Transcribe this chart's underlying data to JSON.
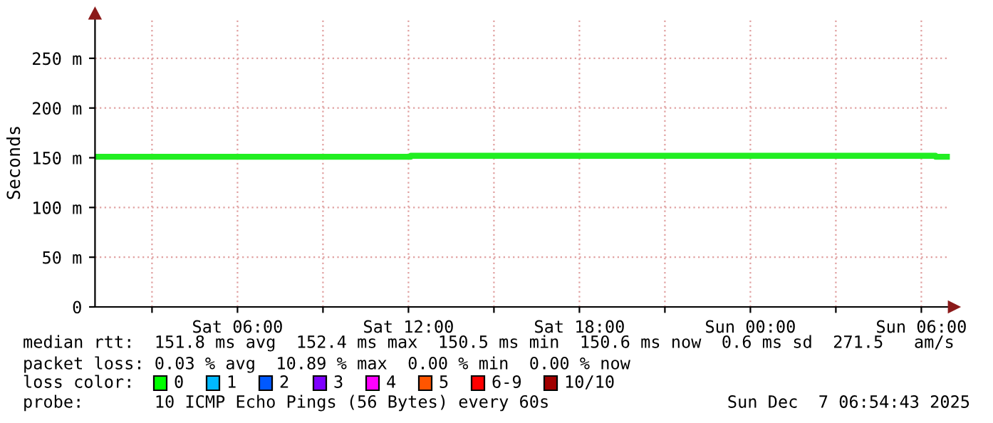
{
  "chart_data": {
    "type": "step",
    "ylabel": "Seconds",
    "x": [
      "2025-12-06T01:00",
      "2025-12-06T12:05",
      "2025-12-07T06:30",
      "2025-12-07T06:55"
    ],
    "series": [
      {
        "color": "#22ee22",
        "values": [
          151,
          152,
          151,
          151
        ]
      }
    ],
    "xlim": [
      "2025-12-06T01:00",
      "2025-12-07T07:00"
    ],
    "xticks": [
      {
        "value": "2025-12-06T03:00",
        "label": null
      },
      {
        "value": "2025-12-06T06:00",
        "label": "Sat 06:00"
      },
      {
        "value": "2025-12-06T09:00",
        "label": null
      },
      {
        "value": "2025-12-06T12:00",
        "label": "Sat 12:00"
      },
      {
        "value": "2025-12-06T15:00",
        "label": null
      },
      {
        "value": "2025-12-06T18:00",
        "label": "Sat 18:00"
      },
      {
        "value": "2025-12-06T21:00",
        "label": null
      },
      {
        "value": "2025-12-07T00:00",
        "label": "Sun 00:00"
      },
      {
        "value": "2025-12-07T03:00",
        "label": null
      },
      {
        "value": "2025-12-07T06:00",
        "label": "Sun 06:00"
      }
    ],
    "ylim": [
      0,
      290
    ],
    "yticks": [
      0,
      {
        "value": 50,
        "label": "50 m"
      },
      {
        "value": 100,
        "label": "100 m"
      },
      {
        "value": 150,
        "label": "150 m"
      },
      {
        "value": 200,
        "label": "200 m"
      },
      {
        "value": 250,
        "label": "250 m"
      }
    ],
    "grid": true,
    "annotations": [
      "median rtt:  151.8 ms avg  152.4 ms max  150.5 ms min  150.6 ms now  0.6 ms sd  271.5   am/s",
      "packet loss: 0.03 % avg  10.89 % max  0.00 % min  0.00 % now",
      "loss color:",
      "0",
      "1",
      "2",
      "3",
      "4",
      "5",
      "6-9",
      "10/10",
      "probe:       10 ICMP Echo Pings (56 Bytes) every 60s",
      "Sun Dec  7 06:54:43 2025"
    ]
  }
}
